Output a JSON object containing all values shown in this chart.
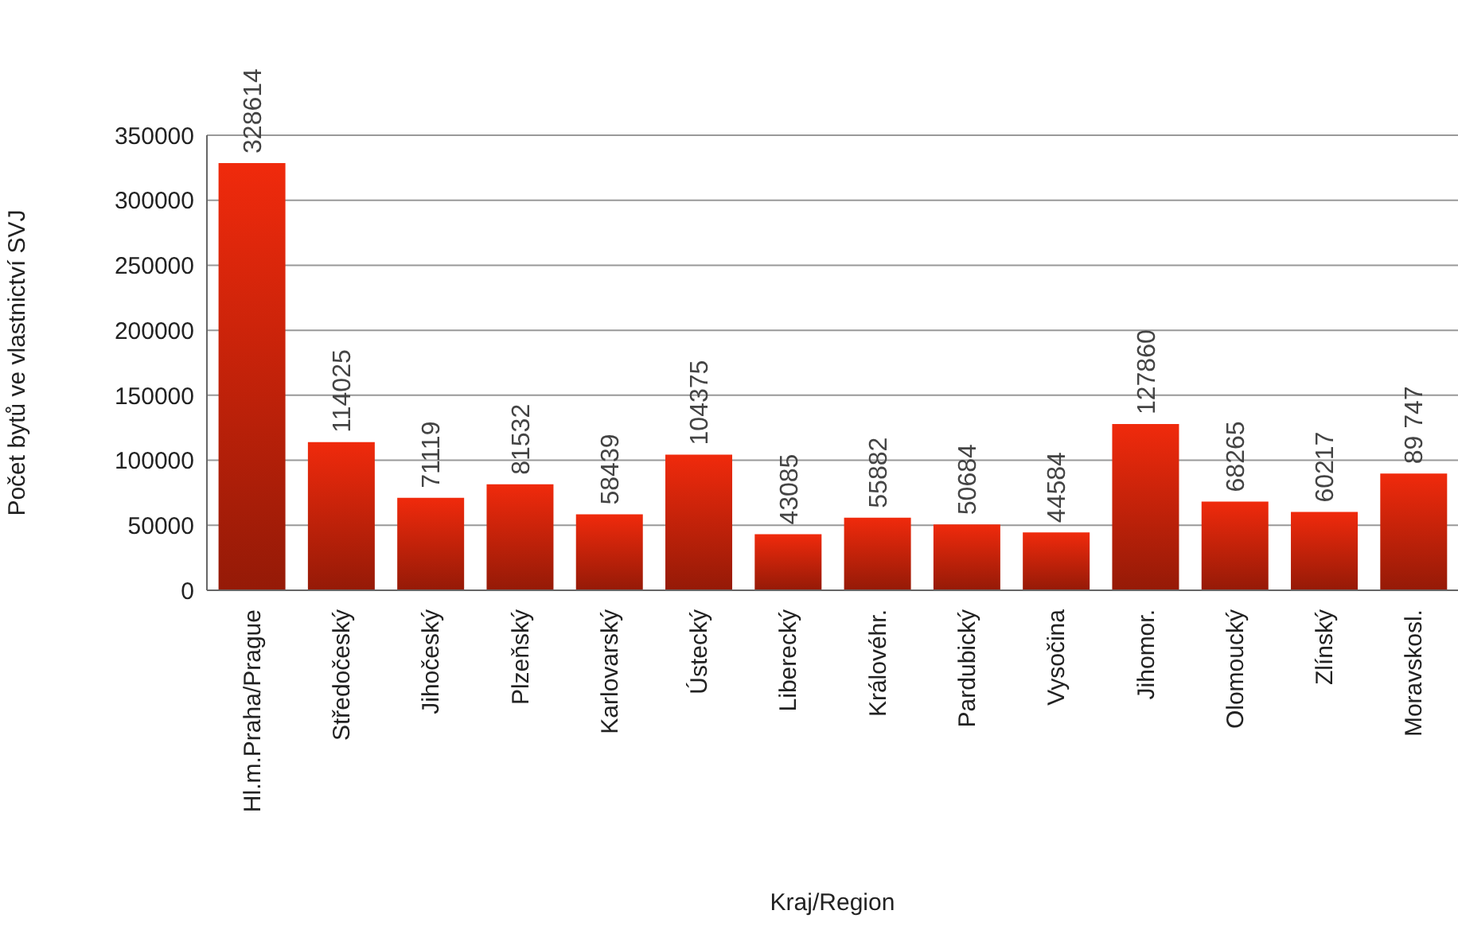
{
  "chart_data": {
    "type": "bar",
    "xlabel": "Kraj/Region",
    "ylabel": "Počet bytů ve vlastnictví SVJ",
    "categories": [
      "Hl.m.Praha/Prague",
      "Středočeský",
      "Jihočeský",
      "Plzeňský",
      "Karlovarský",
      "Ústecký",
      "Liberecký",
      "Královéhr.",
      "Pardubický",
      "Vysočina",
      "Jihomor.",
      "Olomoucký",
      "Zlínský",
      "Moravskosl."
    ],
    "values": [
      328614,
      114025,
      71119,
      81532,
      58439,
      104375,
      43085,
      55882,
      50684,
      44584,
      127860,
      68265,
      60217,
      89747
    ],
    "value_labels": [
      "328614",
      "114025",
      "71119",
      "81532",
      "58439",
      "104375",
      "43085",
      "55882",
      "50684",
      "44584",
      "127860",
      "68265",
      "60217",
      "89 747"
    ],
    "color": "#f02a0c",
    "ylim": [
      0,
      350000
    ],
    "yticks": [
      0,
      50000,
      100000,
      150000,
      200000,
      250000,
      300000,
      350000
    ],
    "grid": "y"
  }
}
